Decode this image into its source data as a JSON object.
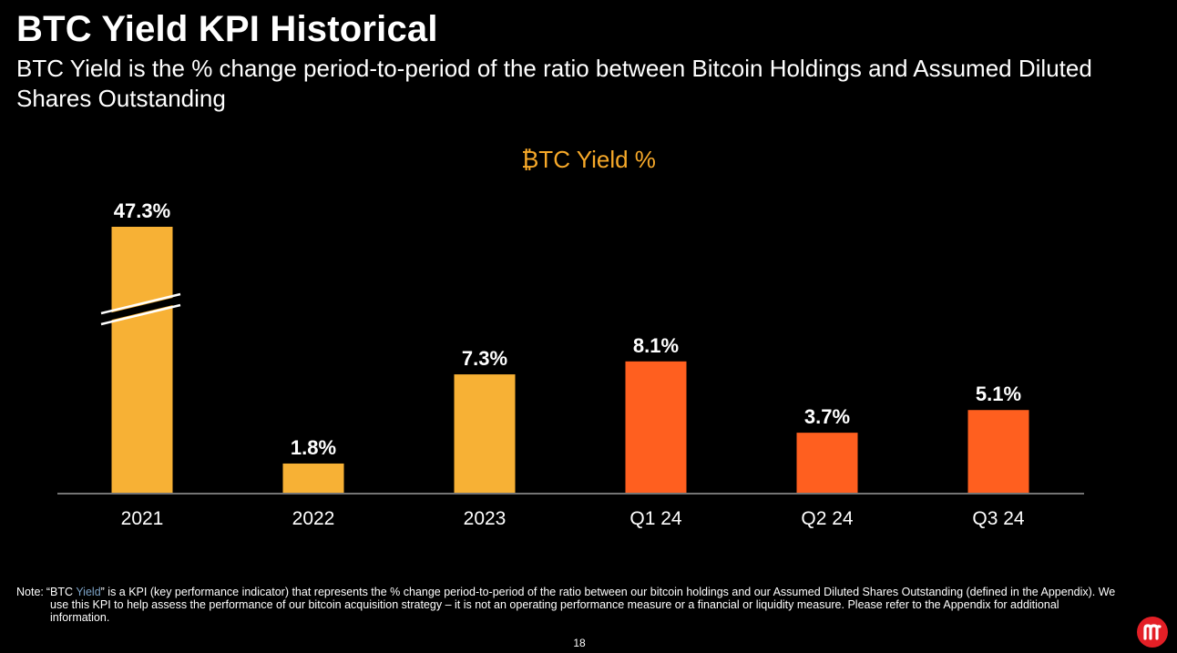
{
  "title": "BTC Yield KPI Historical",
  "subtitle": "BTC Yield is the % change period-to-period of the ratio between Bitcoin Holdings and Assumed Diluted Shares Outstanding",
  "chart_data": {
    "type": "bar",
    "title": "₿TC Yield %",
    "categories": [
      "2021",
      "2022",
      "2023",
      "Q1 24",
      "Q2 24",
      "Q3 24"
    ],
    "values": [
      47.3,
      1.8,
      7.3,
      8.1,
      3.7,
      5.1
    ],
    "value_labels": [
      "47.3%",
      "1.8%",
      "7.3%",
      "8.1%",
      "3.7%",
      "5.1%"
    ],
    "axis_break_on": [
      "2021"
    ],
    "colors": {
      "annual": "#f7b135",
      "quarterly": "#ff5f1f",
      "title": "#f7a929"
    },
    "bar_color_groups": [
      "annual",
      "annual",
      "annual",
      "quarterly",
      "quarterly",
      "quarterly"
    ],
    "xlabel": "",
    "ylabel": "",
    "grid": false,
    "legend": "none"
  },
  "note": {
    "label": "Note:",
    "text_before": "“BTC ",
    "highlight": "Yield",
    "text_after": "” is a KPI (key performance indicator) that represents the % change period-to-period of the ratio between our bitcoin holdings and our Assumed Diluted Shares Outstanding (defined in the Appendix). We use this KPI to help assess the performance of our bitcoin acquisition strategy – it is not an operating performance measure or a financial or liquidity measure. Please refer to the Appendix for additional information."
  },
  "page_number": "18",
  "logo": {
    "name": "company-logo",
    "color": "#e31f26"
  }
}
